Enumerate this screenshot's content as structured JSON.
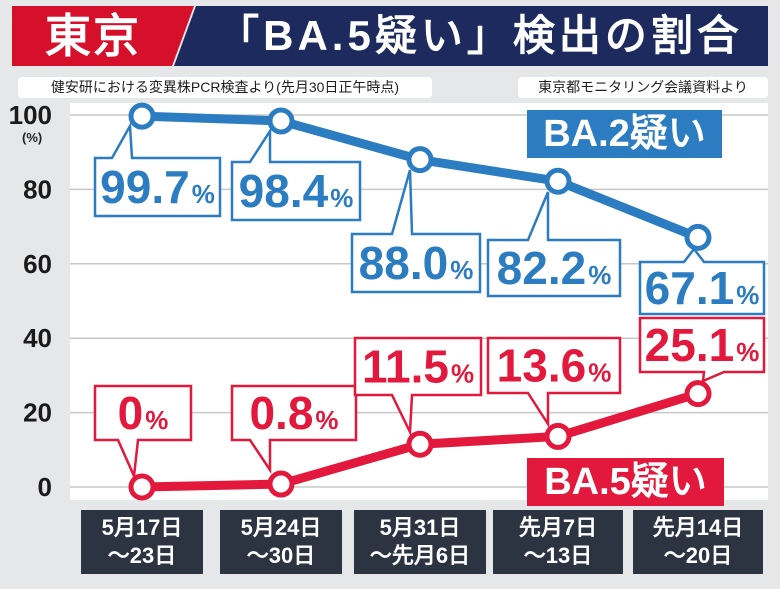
{
  "header": {
    "region": "東京",
    "title": "「BA.5疑い」検出の割合"
  },
  "sources": {
    "left": "健安研における変異株PCR検査より(先月30日正午時点)",
    "right": "東京都モニタリング会議資料より"
  },
  "colors": {
    "region_red": "#d6102b",
    "header_navy": "#1c2a5e",
    "category_bg": "#2c3441",
    "page_bg": "#e6e7e9",
    "plot_bg": "#ffffff",
    "grid": "#c8c8c8"
  },
  "chart_data": {
    "type": "line",
    "categories": [
      "5月17日\n～23日",
      "5月24日\n～30日",
      "5月31日\n～先月6日",
      "先月7日\n～13日",
      "先月14日\n～20日"
    ],
    "ylim": [
      0,
      100
    ],
    "yticks": [
      0,
      20,
      40,
      60,
      80,
      100
    ],
    "yunit": "(%)",
    "grid": true,
    "series": [
      {
        "name": "BA.2疑い",
        "color": "#2b7cc1",
        "values": [
          99.7,
          98.4,
          88.0,
          82.2,
          67.1
        ],
        "labels": [
          "99.7%",
          "98.4%",
          "88.0%",
          "82.2%",
          "67.1%"
        ]
      },
      {
        "name": "BA.5疑い",
        "color": "#e2193c",
        "values": [
          0,
          0.8,
          11.5,
          13.6,
          25.1
        ],
        "labels": [
          "0%",
          "0.8%",
          "11.5%",
          "13.6%",
          "25.1%"
        ]
      }
    ]
  }
}
